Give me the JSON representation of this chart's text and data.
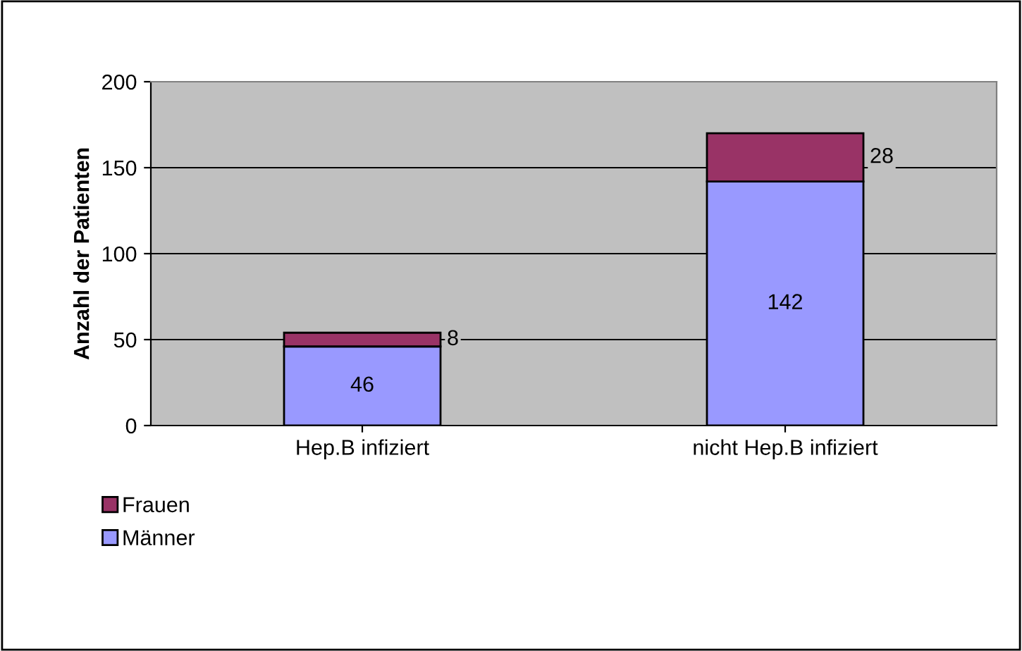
{
  "chart_data": {
    "type": "bar",
    "stacked": true,
    "ylabel": "Anzahl der Patienten",
    "categories": [
      "Hep.B infiziert",
      "nicht Hep.B infiziert"
    ],
    "series": [
      {
        "name": "Männer",
        "color": "#9999ff",
        "values": [
          46,
          142
        ]
      },
      {
        "name": "Frauen",
        "color": "#993366",
        "values": [
          8,
          28
        ]
      }
    ],
    "ylim": [
      0,
      200
    ],
    "yticks": [
      0,
      50,
      100,
      150,
      200
    ],
    "grid": "y",
    "legend": "bottom left",
    "data_labels": true
  }
}
